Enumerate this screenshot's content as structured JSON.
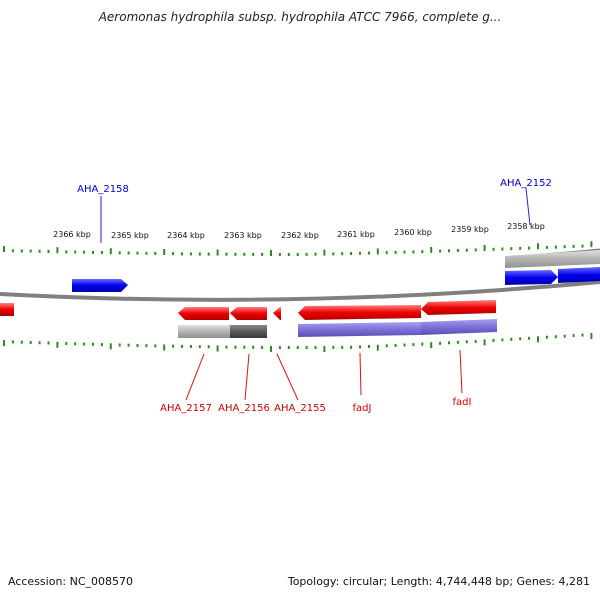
{
  "title": "Aeromonas hydrophila subsp. hydrophila ATCC 7966, complete g...",
  "footer": {
    "accession": "Accession: NC_008570",
    "stats": "Topology: circular; Length: 4,744,448 bp; Genes: 4,281"
  },
  "colors": {
    "forward_gene": "#0000ee",
    "reverse_gene": "#ee0000",
    "backbone": "#808080",
    "ticks": "#2e8b22",
    "label_blue": "#0000cc",
    "label_red": "#cc0000",
    "rna_gray": "#b4b4b4",
    "rna_dark": "#5a5a5a",
    "rna_purple": "#7b70d6"
  },
  "kbp_labels": [
    "2366 kbp",
    "2365 kbp",
    "2364 kbp",
    "2363 kbp",
    "2362 kbp",
    "2361 kbp",
    "2360 kbp",
    "2359 kbp",
    "2358 kbp"
  ],
  "gene_labels": {
    "top": [
      "AHA_2158",
      "AHA_2152"
    ],
    "bottom": [
      "AHA_2157",
      "AHA_2156",
      "AHA_2155",
      "fadJ",
      "fadI"
    ]
  }
}
